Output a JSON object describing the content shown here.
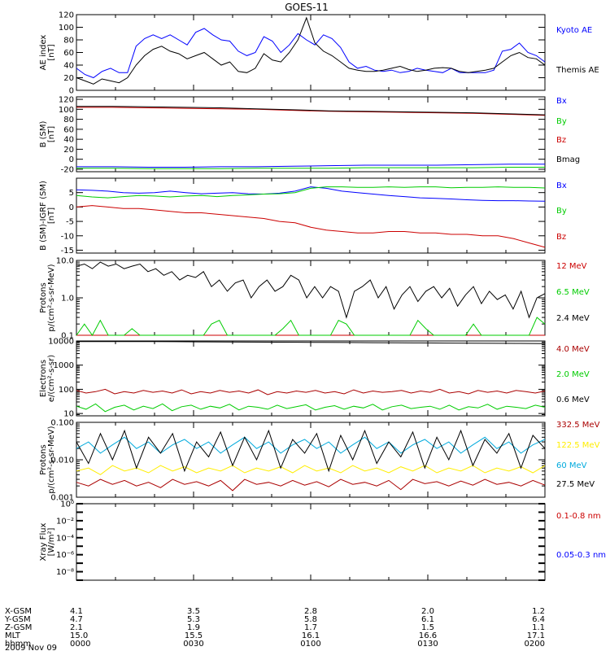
{
  "title": "GOES-11",
  "chart_data": [
    {
      "type": "line",
      "panel": "ae",
      "ylabel": [
        "AE index",
        "[nT]"
      ],
      "ylim": [
        0,
        120
      ],
      "yscale": "linear",
      "ticks": [
        "0",
        "20",
        "40",
        "60",
        "80",
        "100",
        "120"
      ],
      "legend_position": "right",
      "series": [
        {
          "name": "Kyoto AE",
          "color": "#0000ff",
          "values": [
            35,
            25,
            20,
            30,
            35,
            28,
            28,
            70,
            82,
            88,
            82,
            88,
            80,
            72,
            92,
            98,
            88,
            80,
            78,
            62,
            55,
            60,
            85,
            78,
            60,
            72,
            90,
            80,
            72,
            88,
            82,
            68,
            45,
            35,
            38,
            32,
            30,
            32,
            28,
            30,
            35,
            32,
            30,
            28,
            35,
            28,
            28,
            28,
            28,
            32,
            62,
            65,
            75,
            60,
            55,
            45
          ]
        },
        {
          "name": "Themis AE",
          "color": "#000000",
          "values": [
            20,
            15,
            10,
            18,
            15,
            12,
            20,
            40,
            55,
            65,
            70,
            62,
            58,
            50,
            55,
            60,
            50,
            40,
            45,
            30,
            28,
            35,
            58,
            48,
            45,
            60,
            80,
            115,
            75,
            62,
            55,
            45,
            35,
            32,
            30,
            30,
            32,
            35,
            38,
            33,
            30,
            32,
            35,
            36,
            35,
            30,
            28,
            30,
            32,
            35,
            45,
            55,
            60,
            52,
            50,
            40
          ]
        }
      ]
    },
    {
      "type": "line",
      "panel": "bsm",
      "ylabel": [
        "B (SM)",
        "[nT]"
      ],
      "ylim": [
        -25,
        125
      ],
      "yscale": "linear",
      "ticks": [
        "-20",
        "0",
        "20",
        "40",
        "60",
        "80",
        "100",
        "120"
      ],
      "legend_position": "right",
      "series": [
        {
          "name": "Bx",
          "color": "#0000ff",
          "values": [
            -15,
            -15,
            -16,
            -16,
            -15,
            -15,
            -14,
            -13,
            -12,
            -12,
            -12,
            -11,
            -10,
            -10
          ]
        },
        {
          "name": "By",
          "color": "#00cc00",
          "values": [
            -18,
            -18,
            -19,
            -19,
            -19,
            -18,
            -18,
            -18,
            -17,
            -17,
            -17,
            -17,
            -16,
            -16
          ]
        },
        {
          "name": "Bz",
          "color": "#cc0000",
          "values": [
            104,
            104,
            103,
            102,
            101,
            100,
            98,
            96,
            95,
            94,
            93,
            92,
            90,
            88
          ]
        },
        {
          "name": "Bmag",
          "color": "#000000",
          "values": [
            106,
            106,
            105,
            104,
            103,
            101,
            99,
            97,
            96,
            95,
            94,
            93,
            91,
            89
          ]
        }
      ]
    },
    {
      "type": "line",
      "panel": "dbsm",
      "ylabel": [
        "B (SM)-IGRF (SM)",
        "[nT]"
      ],
      "ylim": [
        -16,
        10
      ],
      "yscale": "linear",
      "ticks": [
        "-15",
        "-10",
        "-5",
        "0",
        "5"
      ],
      "legend_position": "right",
      "series": [
        {
          "name": "Bx",
          "color": "#0000ff",
          "values": [
            6,
            5.8,
            5.5,
            5,
            4.8,
            5,
            5.5,
            5,
            4.6,
            4.8,
            5,
            4.6,
            4.5,
            4.8,
            5.5,
            7,
            6.5,
            5.5,
            5,
            4.5,
            4,
            3.6,
            3.2,
            3,
            2.8,
            2.5,
            2.3,
            2.2,
            2.2,
            2.1,
            2
          ]
        },
        {
          "name": "By",
          "color": "#00cc00",
          "values": [
            4,
            3.5,
            3.2,
            3.6,
            4,
            3.8,
            3.5,
            3.8,
            4,
            3.6,
            4,
            4.2,
            4.5,
            4.6,
            5,
            6.5,
            7,
            7,
            6.8,
            6.8,
            7,
            6.8,
            7,
            7,
            6.7,
            6.8,
            6.8,
            7,
            6.8,
            6.8,
            6.6
          ]
        },
        {
          "name": "Bz",
          "color": "#cc0000",
          "values": [
            0,
            0.5,
            0,
            -0.5,
            -0.5,
            -1,
            -1.5,
            -2,
            -2,
            -2.5,
            -3,
            -3.5,
            -4,
            -5,
            -5.5,
            -7,
            -8,
            -8.5,
            -9,
            -9,
            -8.5,
            -8.5,
            -9,
            -9,
            -9.5,
            -9.5,
            -10,
            -10,
            -11,
            -12.5,
            -14
          ]
        }
      ]
    },
    {
      "type": "line",
      "panel": "protons_hi",
      "ylabel": [
        "Protons",
        "p/(cm²-s-sr-MeV)"
      ],
      "ylim": [
        0.1,
        10
      ],
      "yscale": "log",
      "ticks": [
        "0.1",
        "1.0",
        "10.0"
      ],
      "legend_position": "right",
      "series": [
        {
          "name": "12 MeV",
          "color": "#cc0000",
          "values": [
            0.1,
            0.1,
            0.1,
            0.1,
            0.1,
            0.1,
            0.1,
            0.1,
            0.1,
            0.1,
            0.1,
            0.1,
            0.1,
            0.1,
            0.1,
            0.1,
            0.1,
            0.1,
            0.1,
            0.1,
            0.1,
            0.1,
            0.1,
            0.1,
            0.1,
            0.1,
            0.1,
            0.1,
            0.1,
            0.1,
            0.1,
            0.1,
            0.1,
            0.1,
            0.1,
            0.1,
            0.1,
            0.1,
            0.1,
            0.1,
            0.1,
            0.1,
            0.1,
            0.1,
            0.1,
            0.1,
            0.1,
            0.1,
            0.1,
            0.1,
            0.1,
            0.1,
            0.1,
            0.1,
            0.1,
            0.1,
            0.1,
            0.1,
            0.1,
            0.1
          ]
        },
        {
          "name": "6.5 MeV",
          "color": "#00cc00",
          "values": [
            0.1,
            0.2,
            0.1,
            0.25,
            0.1,
            0.1,
            0.1,
            0.15,
            0.1,
            0.1,
            0.1,
            0.1,
            0.1,
            0.1,
            0.1,
            0.1,
            0.1,
            0.2,
            0.25,
            0.1,
            0.1,
            0.1,
            0.1,
            0.1,
            0.1,
            0.1,
            0.15,
            0.25,
            0.1,
            0.1,
            0.1,
            0.1,
            0.1,
            0.25,
            0.2,
            0.1,
            0.1,
            0.1,
            0.1,
            0.1,
            0.1,
            0.1,
            0.1,
            0.25,
            0.15,
            0.1,
            0.1,
            0.1,
            0.1,
            0.1,
            0.2,
            0.1,
            0.1,
            0.1,
            0.1,
            0.1,
            0.1,
            0.1,
            0.3,
            0.2
          ]
        },
        {
          "name": "2.4 MeV",
          "color": "#000000",
          "values": [
            7,
            8,
            6,
            9,
            7,
            8,
            6,
            7,
            8,
            5,
            6,
            4,
            5,
            3,
            4,
            3.5,
            5,
            2,
            3,
            1.5,
            2.5,
            3,
            1,
            2,
            3,
            1.5,
            2,
            4,
            3,
            1,
            2,
            1,
            2,
            1.5,
            0.3,
            1.5,
            2,
            3,
            1,
            2,
            0.5,
            1.2,
            2,
            0.8,
            1.5,
            2,
            1,
            1.8,
            0.6,
            1.2,
            2,
            0.7,
            1.5,
            0.9,
            1.2,
            0.5,
            1.5,
            0.3,
            1,
            1.3
          ]
        }
      ]
    },
    {
      "type": "line",
      "panel": "electrons",
      "ylabel": [
        "Electrons",
        "e/(cm²-s-sr)"
      ],
      "ylim": [
        8,
        10000
      ],
      "yscale": "log",
      "ticks": [
        "10",
        "100",
        "1000",
        "10000"
      ],
      "legend_position": "right",
      "series": [
        {
          "name": "4.0 MeV",
          "color": "#aa0000",
          "values": [
            90,
            70,
            80,
            100,
            65,
            80,
            70,
            90,
            75,
            85,
            70,
            95,
            65,
            80,
            70,
            90,
            75,
            85,
            70,
            95,
            60,
            80,
            70,
            85,
            75,
            90,
            70,
            80,
            65,
            95,
            70,
            85,
            75,
            80,
            90,
            70,
            85,
            75,
            100,
            70,
            80,
            65,
            90,
            75,
            85,
            70,
            90,
            80,
            70,
            85
          ]
        },
        {
          "name": "2.0 MeV",
          "color": "#00cc00",
          "values": [
            20,
            15,
            25,
            12,
            18,
            22,
            14,
            20,
            16,
            25,
            13,
            19,
            22,
            15,
            20,
            17,
            24,
            14,
            20,
            18,
            15,
            22,
            16,
            19,
            23,
            14,
            18,
            21,
            15,
            20,
            17,
            24,
            14,
            19,
            22,
            16,
            18,
            20,
            15,
            22,
            14,
            19,
            17,
            24,
            15,
            20,
            18,
            16,
            22,
            18
          ]
        },
        {
          "name": "0.6 MeV",
          "color": "#000000",
          "values": [
            9500,
            9500,
            9400,
            9400,
            9300,
            9200,
            9100,
            9000,
            8900,
            8800,
            8700,
            8600,
            8500,
            8400,
            8300,
            8200,
            8100,
            8000,
            7900,
            7800
          ]
        }
      ]
    },
    {
      "type": "line",
      "panel": "protons_lo",
      "ylabel": [
        "Protons",
        "p/(cm²-s-sr-MeV)"
      ],
      "ylim": [
        0.001,
        0.1
      ],
      "yscale": "log",
      "ticks": [
        "0.001",
        "0.010",
        "0.100"
      ],
      "legend_position": "right",
      "series": [
        {
          "name": "332.5 MeV",
          "color": "#aa0000",
          "values": [
            0.0025,
            0.002,
            0.003,
            0.0022,
            0.0028,
            0.002,
            0.0025,
            0.0018,
            0.003,
            0.0022,
            0.0026,
            0.002,
            0.0028,
            0.0015,
            0.003,
            0.0022,
            0.0025,
            0.002,
            0.0028,
            0.0021,
            0.0026,
            0.0019,
            0.003,
            0.0022,
            0.0025,
            0.002,
            0.0028,
            0.0016,
            0.003,
            0.0023,
            0.0026,
            0.002,
            0.0027,
            0.0021,
            0.003,
            0.0022,
            0.0025,
            0.002,
            0.0028,
            0.0021
          ]
        },
        {
          "name": "122.5 MeV",
          "color": "#ffee00",
          "values": [
            0.005,
            0.006,
            0.004,
            0.007,
            0.005,
            0.006,
            0.0045,
            0.007,
            0.005,
            0.0065,
            0.0045,
            0.006,
            0.005,
            0.007,
            0.0045,
            0.006,
            0.005,
            0.0065,
            0.0045,
            0.007,
            0.005,
            0.006,
            0.0045,
            0.007,
            0.005,
            0.006,
            0.0045,
            0.0065,
            0.005,
            0.007,
            0.0045,
            0.006,
            0.005,
            0.007,
            0.0045,
            0.006,
            0.005,
            0.0065,
            0.0045,
            0.007
          ]
        },
        {
          "name": "60 MeV",
          "color": "#00aadd",
          "values": [
            0.02,
            0.03,
            0.015,
            0.025,
            0.04,
            0.02,
            0.03,
            0.015,
            0.025,
            0.035,
            0.02,
            0.03,
            0.015,
            0.025,
            0.04,
            0.02,
            0.03,
            0.015,
            0.025,
            0.035,
            0.02,
            0.03,
            0.015,
            0.025,
            0.04,
            0.02,
            0.03,
            0.015,
            0.025,
            0.035,
            0.02,
            0.03,
            0.015,
            0.025,
            0.04,
            0.02,
            0.03,
            0.015,
            0.025,
            0.035
          ]
        },
        {
          "name": "27.5 MeV",
          "color": "#000000",
          "values": [
            0.03,
            0.008,
            0.05,
            0.01,
            0.06,
            0.006,
            0.04,
            0.015,
            0.05,
            0.005,
            0.03,
            0.012,
            0.055,
            0.007,
            0.04,
            0.01,
            0.06,
            0.006,
            0.035,
            0.015,
            0.05,
            0.005,
            0.045,
            0.01,
            0.06,
            0.008,
            0.03,
            0.012,
            0.055,
            0.006,
            0.04,
            0.01,
            0.06,
            0.007,
            0.035,
            0.015,
            0.05,
            0.006,
            0.045,
            0.02
          ]
        }
      ]
    },
    {
      "type": "line",
      "panel": "xray",
      "ylabel": [
        "Xray Flux",
        "[W/m²]"
      ],
      "ylim": [
        1e-09,
        1
      ],
      "yscale": "log",
      "ticks": [
        "10⁻⁸",
        "10⁻⁶",
        "10⁻⁴",
        "10⁻²",
        "10⁰"
      ],
      "legend_position": "right",
      "series": [
        {
          "name": "0.1-0.8 nm",
          "color": "#cc0000",
          "values": []
        },
        {
          "name": "0.05-0.3 nm",
          "color": "#0000ff",
          "values": []
        }
      ]
    }
  ],
  "ephemeris": {
    "row_labels": [
      "X-GSM",
      "Y-GSM",
      "Z-GSM",
      "MLT",
      "hhmm"
    ],
    "date": "2009 Nov 09",
    "columns": [
      [
        "4.1",
        "4.7",
        "2.1",
        "15.0",
        "0000"
      ],
      [
        "3.5",
        "5.3",
        "1.9",
        "15.5",
        "0030"
      ],
      [
        "2.8",
        "5.8",
        "1.7",
        "16.1",
        "0100"
      ],
      [
        "2.0",
        "6.1",
        "1.5",
        "16.6",
        "0130"
      ],
      [
        "1.2",
        "6.4",
        "1.1",
        "17.1",
        "0200"
      ]
    ]
  }
}
